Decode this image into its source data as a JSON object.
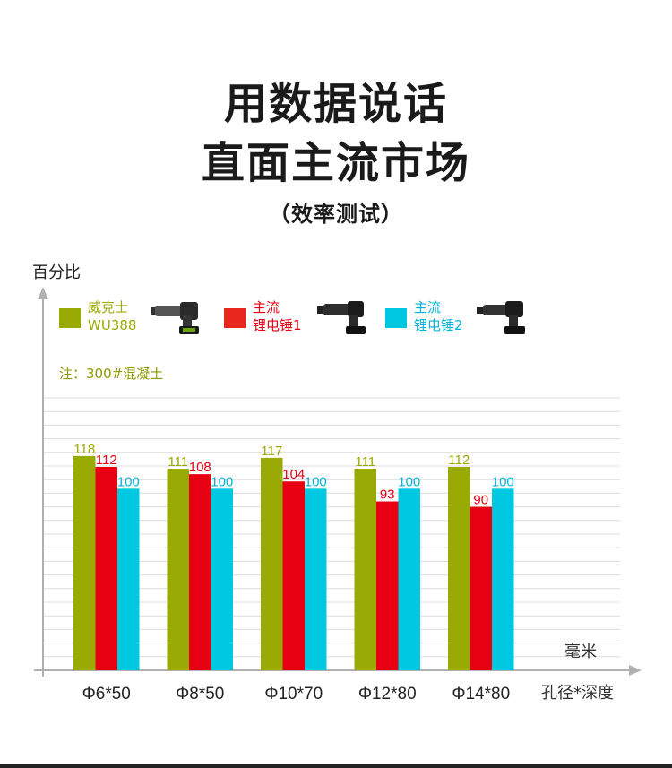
{
  "header": {
    "title_line1": "用数据说话",
    "title_line2": "直面主流市场",
    "subtitle": "（效率测试）"
  },
  "note": "注：300#混凝土",
  "legend": [
    {
      "line1": "威克士",
      "line2": "WU388",
      "color": "#9aaa05",
      "icon": "green-hammer-drill-icon"
    },
    {
      "line1": "主流",
      "line2": "锂电锤1",
      "color": "#e60012",
      "icon": "black-hammer-drill-icon"
    },
    {
      "line1": "主流",
      "line2": "锂电锤2",
      "color": "#00c8e0",
      "icon": "black-hammer-drill-icon"
    }
  ],
  "chart_data": {
    "type": "bar",
    "ylabel": "百分比",
    "xlabel": "孔径*深度",
    "x_unit": "毫米",
    "ylim": [
      0,
      150
    ],
    "grid": true,
    "categories": [
      "Φ6*50",
      "Φ8*50",
      "Φ10*70",
      "Φ12*80",
      "Φ14*80"
    ],
    "series": [
      {
        "name": "威克士 WU388",
        "color": "#9aaa05",
        "values": [
          118,
          111,
          117,
          111,
          112
        ]
      },
      {
        "name": "主流 锂电锤1",
        "color": "#e60012",
        "values": [
          112,
          108,
          104,
          93,
          90
        ]
      },
      {
        "name": "主流 锂电锤2",
        "color": "#00c8e0",
        "values": [
          100,
          100,
          100,
          100,
          100
        ]
      }
    ]
  }
}
